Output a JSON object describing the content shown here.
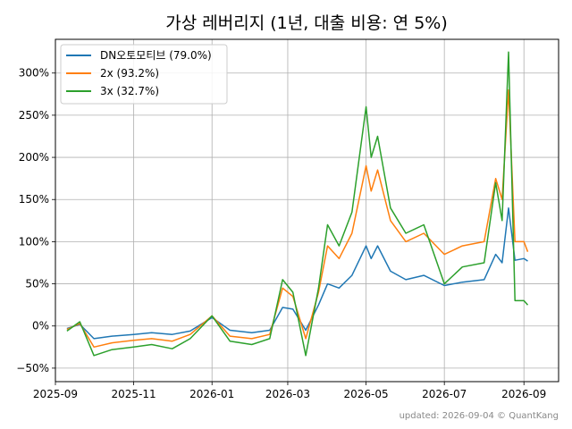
{
  "chart_data": {
    "type": "line",
    "title": "가상 레버리지 (1년, 대출 비용: 연 5%)",
    "footer": "updated: 2026-09-04 © QuantKang",
    "x_ticks": [
      "2025-09",
      "2025-11",
      "2026-01",
      "2026-03",
      "2026-05",
      "2026-07",
      "2026-09"
    ],
    "y_ticks": [
      -50,
      0,
      50,
      100,
      150,
      200,
      250,
      300
    ],
    "y_tick_labels": [
      "−50%",
      "0%",
      "50%",
      "100%",
      "150%",
      "200%",
      "250%",
      "300%"
    ],
    "xlim": [
      "2025-09-01",
      "2026-09-28"
    ],
    "ylim": [
      -66,
      340
    ],
    "grid": true,
    "legend_position": "top-left",
    "x": [
      "2025-09-10",
      "2025-09-20",
      "2025-10-01",
      "2025-10-15",
      "2025-11-01",
      "2025-11-15",
      "2025-12-01",
      "2025-12-15",
      "2026-01-01",
      "2026-01-15",
      "2026-02-01",
      "2026-02-15",
      "2026-02-25",
      "2026-03-05",
      "2026-03-15",
      "2026-03-25",
      "2026-04-01",
      "2026-04-10",
      "2026-04-20",
      "2026-05-01",
      "2026-05-05",
      "2026-05-10",
      "2026-05-20",
      "2026-06-01",
      "2026-06-15",
      "2026-07-01",
      "2026-07-15",
      "2026-08-01",
      "2026-08-10",
      "2026-08-15",
      "2026-08-20",
      "2026-08-25",
      "2026-09-01",
      "2026-09-04"
    ],
    "series": [
      {
        "name": "DN오토모티브 (79.0%)",
        "color": "#1f77b4",
        "values": [
          -3,
          2,
          -15,
          -12,
          -10,
          -8,
          -10,
          -6,
          10,
          -5,
          -8,
          -5,
          22,
          20,
          -5,
          25,
          50,
          45,
          60,
          95,
          80,
          95,
          65,
          55,
          60,
          48,
          52,
          55,
          85,
          75,
          140,
          78,
          80,
          77
        ]
      },
      {
        "name": "2x (93.2%)",
        "color": "#ff7f0e",
        "values": [
          -4,
          3,
          -25,
          -20,
          -17,
          -15,
          -18,
          -10,
          12,
          -12,
          -15,
          -10,
          45,
          35,
          -15,
          40,
          95,
          80,
          110,
          190,
          160,
          185,
          125,
          100,
          110,
          85,
          95,
          100,
          175,
          150,
          280,
          100,
          100,
          88
        ]
      },
      {
        "name": "3x (32.7%)",
        "color": "#2ca02c",
        "values": [
          -6,
          5,
          -35,
          -28,
          -25,
          -22,
          -27,
          -15,
          12,
          -18,
          -22,
          -15,
          55,
          40,
          -35,
          45,
          120,
          95,
          135,
          260,
          200,
          225,
          140,
          110,
          120,
          50,
          70,
          75,
          170,
          125,
          325,
          30,
          30,
          25
        ]
      }
    ]
  }
}
